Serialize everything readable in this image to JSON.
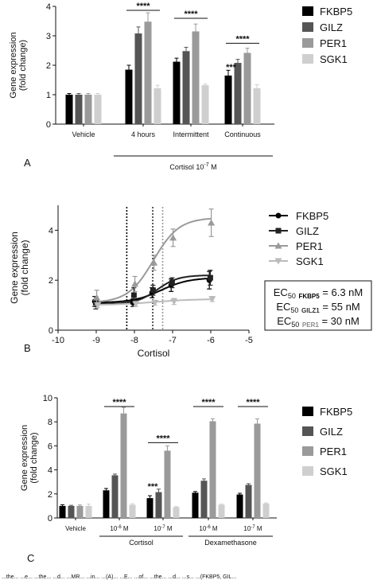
{
  "panels": {
    "a": {
      "letter": "A"
    },
    "b": {
      "letter": "B",
      "ec50": [
        {
          "prefix": "EC",
          "sub": "50",
          "gene": "FKBP5",
          "value": " = 6.3 nM",
          "color": "#000000"
        },
        {
          "prefix": "EC",
          "sub": "50",
          "gene": "GILZ1",
          "value": " = 55 nM",
          "color": "#333333"
        },
        {
          "prefix": "EC",
          "sub": "50",
          "gene": "PER1",
          "value": " = 30 nM",
          "color": "#8a8a8a"
        }
      ]
    },
    "c": {
      "letter": "C"
    }
  },
  "caption_fragment": "...the... ...e... ...the... ...d... ...MR... ...in... ...(A)... ...E... ...of... ...the... ...d... ...s... ...(FKBP5, GIL...",
  "colors": {
    "FKBP5": "#000000",
    "GILZ": "#555555",
    "PER1": "#9a9a9a",
    "SGK1": "#cfcfcf"
  },
  "chart_data": [
    {
      "type": "bar",
      "ylabel": "Gene expression (fold change)",
      "ylim": [
        0,
        4
      ],
      "yticks": [
        "0",
        "1",
        "2",
        "3",
        "4"
      ],
      "groups": [
        "Vehicle",
        "4 hours",
        "Intermittent",
        "Continuous"
      ],
      "group_bracket": {
        "label": "Cortisol 10",
        "exp": "-7",
        "unit": " M"
      },
      "series": [
        {
          "name": "FKBP5",
          "values": [
            1.0,
            1.85,
            2.12,
            1.65
          ],
          "errors": [
            0.04,
            0.15,
            0.12,
            0.18
          ]
        },
        {
          "name": "GILZ",
          "values": [
            1.0,
            3.08,
            2.48,
            2.08
          ],
          "errors": [
            0.04,
            0.22,
            0.13,
            0.12
          ]
        },
        {
          "name": "PER1",
          "values": [
            1.0,
            3.48,
            3.15,
            2.42
          ],
          "errors": [
            0.04,
            0.3,
            0.25,
            0.16
          ]
        },
        {
          "name": "SGK1",
          "values": [
            1.0,
            1.22,
            1.32,
            1.22
          ],
          "errors": [
            0.04,
            0.1,
            0.04,
            0.12
          ]
        }
      ],
      "annotations": [
        {
          "text": "****",
          "group": 1,
          "y": 3.92
        },
        {
          "text": "****",
          "group": 2,
          "y": 3.65
        },
        {
          "text": "***",
          "group": 3,
          "y": 1.95
        },
        {
          "text": "****",
          "group": 3,
          "y": 2.8
        }
      ]
    },
    {
      "type": "line",
      "ylabel": "Gene expression (fold change)",
      "xlabel": "Cortisol",
      "xlim": [
        -10,
        -5
      ],
      "ylim": [
        0,
        5
      ],
      "xticks": [
        "-10",
        "-9",
        "-8",
        "-7",
        "-6",
        "-5"
      ],
      "yticks": [
        "0",
        "2",
        "4"
      ],
      "x": [
        -9,
        -8,
        -7.5,
        -7,
        -6
      ],
      "series": [
        {
          "name": "FKBP5",
          "marker": "circle",
          "values": [
            1.15,
            1.1,
            1.5,
            1.8,
            2.0
          ],
          "errors": [
            0.2,
            0.15,
            0.2,
            0.25,
            0.35
          ]
        },
        {
          "name": "GILZ",
          "marker": "square",
          "values": [
            1.1,
            1.4,
            1.6,
            1.9,
            2.1
          ],
          "errors": [
            0.25,
            0.3,
            0.2,
            0.2,
            0.3
          ]
        },
        {
          "name": "PER1",
          "marker": "triangle-up",
          "values": [
            1.3,
            1.85,
            2.7,
            3.7,
            4.3
          ],
          "errors": [
            0.3,
            0.3,
            0.3,
            0.35,
            0.55
          ]
        },
        {
          "name": "SGK1",
          "marker": "triangle-down",
          "values": [
            1.0,
            1.05,
            1.1,
            1.15,
            1.25
          ],
          "errors": [
            0.1,
            0.1,
            0.1,
            0.12,
            0.1
          ]
        }
      ],
      "ec50_lines": [
        -8.2,
        -7.52,
        -7.26
      ]
    },
    {
      "type": "bar",
      "ylabel": "Gene expression (fold change)",
      "ylim": [
        0,
        10
      ],
      "yticks": [
        "0",
        "2",
        "4",
        "6",
        "8",
        "10"
      ],
      "groups": [
        {
          "base": "Vehicle",
          "exp": ""
        },
        {
          "base": "10",
          "exp": "-6",
          "unit": " M"
        },
        {
          "base": "10",
          "exp": "-7",
          "unit": " M"
        },
        {
          "base": "10",
          "exp": "-6",
          "unit": " M"
        },
        {
          "base": "10",
          "exp": "-7",
          "unit": " M"
        }
      ],
      "treatments": [
        {
          "label": "Cortisol",
          "from": 1,
          "to": 2
        },
        {
          "label": "Dexamethasone",
          "from": 3,
          "to": 4
        }
      ],
      "series": [
        {
          "name": "FKBP5",
          "values": [
            1.0,
            2.3,
            1.65,
            2.1,
            1.95
          ],
          "errors": [
            0.1,
            0.15,
            0.2,
            0.1,
            0.1
          ]
        },
        {
          "name": "GILZ",
          "values": [
            1.0,
            3.55,
            2.15,
            3.1,
            2.75
          ],
          "errors": [
            0.05,
            0.1,
            0.25,
            0.15,
            0.1
          ]
        },
        {
          "name": "PER1",
          "values": [
            1.0,
            8.7,
            5.6,
            8.05,
            7.85
          ],
          "errors": [
            0.08,
            0.5,
            0.4,
            0.2,
            0.4
          ]
        },
        {
          "name": "SGK1",
          "values": [
            1.0,
            1.1,
            0.9,
            1.1,
            1.2
          ],
          "errors": [
            0.15,
            0.08,
            0.05,
            0.05,
            0.05
          ]
        }
      ],
      "annotations": [
        {
          "text": "****",
          "group": 1,
          "y": 9.4
        },
        {
          "text": "****",
          "group": 2,
          "y": 6.4
        },
        {
          "text": "***",
          "group": 2,
          "y": 2.65
        },
        {
          "text": "****",
          "group": 3,
          "y": 9.4
        },
        {
          "text": "****",
          "group": 4,
          "y": 9.4
        }
      ]
    }
  ]
}
